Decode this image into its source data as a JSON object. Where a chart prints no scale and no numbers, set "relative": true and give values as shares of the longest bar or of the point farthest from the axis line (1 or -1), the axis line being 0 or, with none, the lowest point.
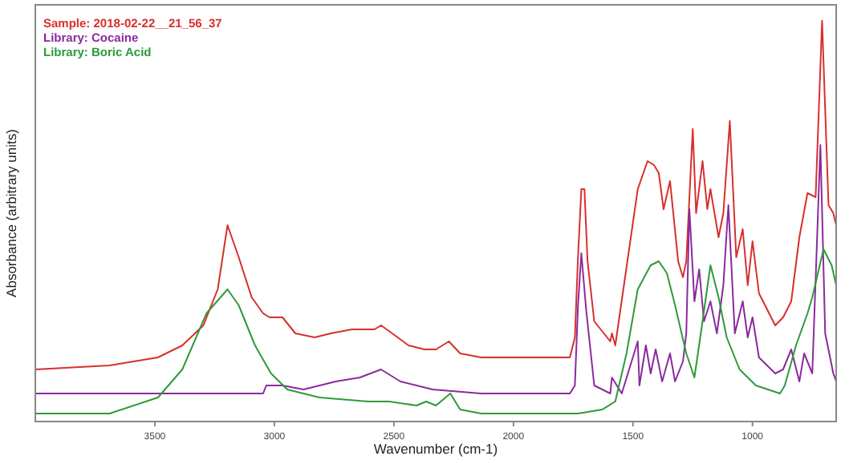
{
  "chart_data": {
    "type": "line",
    "xlabel": "Wavenumber (cm-1)",
    "ylabel": "Absorbance (arbitrary units)",
    "relative": true,
    "xlim": [
      4000,
      650
    ],
    "xticks": [
      3500,
      3000,
      2500,
      2000,
      1500,
      1000
    ],
    "tick_labels": "x",
    "grid": false,
    "legend": "top left",
    "marker": "none",
    "line_style": "solid",
    "series": [
      {
        "name": "Sample: 2018-02-22__21_56_37",
        "color": "#d7302c",
        "x": [
          4000,
          3689,
          3487,
          3385,
          3297,
          3237,
          3196,
          3149,
          3095,
          3047,
          3020,
          2966,
          2912,
          2831,
          2764,
          2676,
          2581,
          2554,
          2507,
          2439,
          2372,
          2324,
          2270,
          2223,
          2135,
          1932,
          1764,
          1743,
          1730,
          1716,
          1703,
          1690,
          1662,
          1595,
          1588,
          1574,
          1480,
          1439,
          1412,
          1392,
          1372,
          1345,
          1311,
          1291,
          1277,
          1250,
          1236,
          1209,
          1189,
          1176,
          1142,
          1122,
          1095,
          1068,
          1041,
          1020,
          1000,
          973,
          939,
          905,
          872,
          838,
          804,
          770,
          736,
          709,
          682,
          662,
          650
        ],
        "values": [
          0.13,
          0.14,
          0.16,
          0.19,
          0.24,
          0.33,
          0.49,
          0.41,
          0.31,
          0.27,
          0.26,
          0.26,
          0.22,
          0.21,
          0.22,
          0.23,
          0.23,
          0.24,
          0.22,
          0.19,
          0.18,
          0.18,
          0.2,
          0.17,
          0.16,
          0.16,
          0.16,
          0.21,
          0.41,
          0.58,
          0.58,
          0.4,
          0.25,
          0.2,
          0.22,
          0.19,
          0.58,
          0.65,
          0.64,
          0.62,
          0.53,
          0.6,
          0.4,
          0.36,
          0.4,
          0.73,
          0.52,
          0.65,
          0.53,
          0.58,
          0.46,
          0.52,
          0.75,
          0.41,
          0.48,
          0.34,
          0.45,
          0.32,
          0.28,
          0.24,
          0.26,
          0.3,
          0.46,
          0.57,
          0.56,
          1,
          0.54,
          0.52,
          0.49
        ]
      },
      {
        "name": "Library: Cocaine",
        "color": "#8b2a9e",
        "x": [
          4000,
          3047,
          3034,
          2966,
          2878,
          2743,
          2642,
          2554,
          2473,
          2338,
          2135,
          1764,
          1743,
          1730,
          1716,
          1696,
          1662,
          1595,
          1588,
          1547,
          1480,
          1473,
          1446,
          1426,
          1405,
          1378,
          1345,
          1324,
          1291,
          1277,
          1264,
          1243,
          1223,
          1203,
          1176,
          1149,
          1122,
          1101,
          1074,
          1041,
          1020,
          1000,
          973,
          939,
          905,
          872,
          838,
          804,
          784,
          750,
          716,
          696,
          662,
          650
        ],
        "values": [
          0.07,
          0.07,
          0.09,
          0.09,
          0.08,
          0.1,
          0.11,
          0.13,
          0.1,
          0.08,
          0.07,
          0.07,
          0.09,
          0.29,
          0.42,
          0.28,
          0.09,
          0.07,
          0.11,
          0.07,
          0.2,
          0.09,
          0.19,
          0.12,
          0.18,
          0.1,
          0.17,
          0.1,
          0.15,
          0.22,
          0.53,
          0.3,
          0.38,
          0.25,
          0.3,
          0.22,
          0.34,
          0.54,
          0.22,
          0.3,
          0.21,
          0.26,
          0.16,
          0.14,
          0.12,
          0.13,
          0.18,
          0.1,
          0.17,
          0.12,
          0.69,
          0.22,
          0.12,
          0.1
        ]
      },
      {
        "name": "Library: Boric Acid",
        "color": "#2e9a3a",
        "x": [
          4000,
          3689,
          3487,
          3385,
          3284,
          3196,
          3149,
          3081,
          3014,
          2946,
          2811,
          2608,
          2520,
          2405,
          2365,
          2324,
          2264,
          2223,
          2135,
          1730,
          1628,
          1574,
          1527,
          1480,
          1426,
          1392,
          1358,
          1324,
          1277,
          1243,
          1209,
          1176,
          1142,
          1108,
          1054,
          986,
          885,
          865,
          818,
          770,
          750,
          703,
          669,
          650
        ],
        "values": [
          0.02,
          0.02,
          0.06,
          0.13,
          0.27,
          0.33,
          0.29,
          0.19,
          0.12,
          0.08,
          0.06,
          0.05,
          0.05,
          0.04,
          0.05,
          0.04,
          0.07,
          0.03,
          0.02,
          0.02,
          0.03,
          0.05,
          0.17,
          0.33,
          0.39,
          0.4,
          0.37,
          0.29,
          0.17,
          0.11,
          0.25,
          0.39,
          0.31,
          0.21,
          0.13,
          0.09,
          0.07,
          0.09,
          0.19,
          0.27,
          0.31,
          0.43,
          0.39,
          0.34
        ]
      }
    ]
  }
}
